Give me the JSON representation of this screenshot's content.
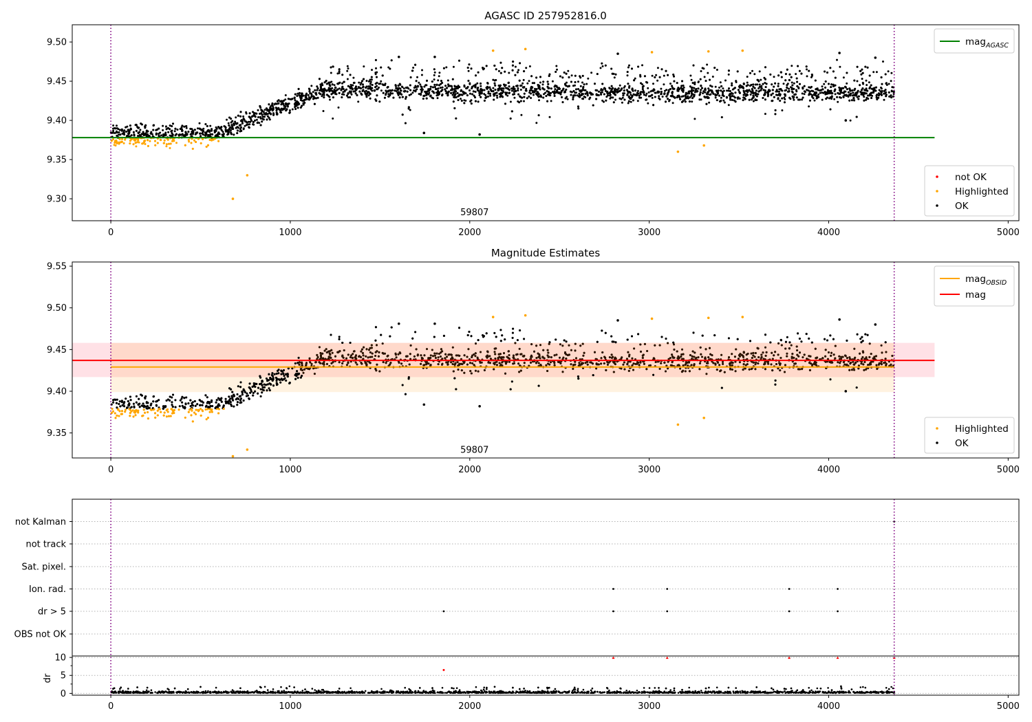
{
  "chart_data": [
    {
      "type": "scatter",
      "title": "AGASC ID 257952816.0",
      "xlim": [
        -215,
        5060
      ],
      "ylim": [
        9.272,
        9.522
      ],
      "xticks": [
        0,
        1000,
        2000,
        3000,
        4000,
        5000
      ],
      "yticks": [
        9.3,
        9.35,
        9.4,
        9.45,
        9.5
      ],
      "ytick_labels": [
        "9.30",
        "9.35",
        "9.40",
        "9.45",
        "9.50"
      ],
      "vlines": [
        0,
        4365
      ],
      "hlines": [
        {
          "name": "mag_AGASC",
          "y": 9.378,
          "x": [
            -215,
            4590
          ],
          "color": "#008000"
        }
      ],
      "annotations": [
        {
          "text": "59807",
          "x": 2180,
          "y": 9.279
        }
      ],
      "legend_top": {
        "position": "top-right",
        "entries": [
          {
            "label": "mag",
            "sub": "AGASC",
            "color": "#008000",
            "kind": "line"
          }
        ]
      },
      "legend_bottom": {
        "position": "bottom-right",
        "entries": [
          {
            "label": "not OK",
            "color": "#ff0000",
            "kind": "dot"
          },
          {
            "label": "Highlighted",
            "color": "#ffa500",
            "kind": "dot"
          },
          {
            "label": "OK",
            "color": "#000000",
            "kind": "dot"
          }
        ]
      },
      "series": [
        {
          "name": "Highlighted",
          "color": "#ffa500",
          "points": [
            [
              2130,
              9.489
            ],
            [
              2310,
              9.491
            ],
            [
              3015,
              9.487
            ],
            [
              3330,
              9.488
            ],
            [
              3520,
              9.489
            ],
            [
              680,
              9.3
            ],
            [
              760,
              9.33
            ],
            [
              3160,
              9.36
            ],
            [
              3305,
              9.368
            ]
          ]
        },
        {
          "name": "OK",
          "color": "#000000",
          "points": [
            [
              1745,
              9.384
            ],
            [
              2055,
              9.382
            ],
            [
              4060,
              9.486
            ],
            [
              4260,
              9.48
            ],
            [
              1605,
              9.481
            ],
            [
              1805,
              9.481
            ],
            [
              2825,
              9.485
            ],
            [
              4095,
              9.4
            ]
          ]
        }
      ]
    },
    {
      "type": "scatter",
      "title": "Magnitude Estimates",
      "xlim": [
        -215,
        5060
      ],
      "ylim": [
        9.32,
        9.555
      ],
      "xticks": [
        0,
        1000,
        2000,
        3000,
        4000,
        5000
      ],
      "yticks": [
        9.35,
        9.4,
        9.45,
        9.5,
        9.55
      ],
      "ytick_labels": [
        "9.35",
        "9.40",
        "9.45",
        "9.50",
        "9.55"
      ],
      "vlines": [
        0,
        4365
      ],
      "hlines": [
        {
          "name": "mag_OBSID",
          "y": 9.429,
          "x": [
            0,
            4365
          ],
          "color": "#ffa500"
        },
        {
          "name": "mag",
          "y": 9.437,
          "x": [
            -215,
            4590
          ],
          "color": "#ff0000"
        }
      ],
      "bands": [
        {
          "name": "mag band",
          "y": [
            9.417,
            9.458
          ],
          "x": [
            -215,
            4590
          ],
          "color": "#ff4d6a"
        },
        {
          "name": "mag_OBSID band",
          "y": [
            9.399,
            9.458
          ],
          "x": [
            0,
            4365
          ],
          "color": "#ffb347"
        }
      ],
      "annotations": [
        {
          "text": "59807",
          "x": 2180,
          "y": 9.326
        }
      ],
      "legend_top": {
        "position": "top-right",
        "entries": [
          {
            "label": "mag",
            "sub": "OBSID",
            "color": "#ffa500",
            "kind": "line"
          },
          {
            "label": "mag",
            "sub": "",
            "color": "#ff0000",
            "kind": "line"
          }
        ]
      },
      "legend_bottom": {
        "position": "bottom-right",
        "entries": [
          {
            "label": "Highlighted",
            "color": "#ffa500",
            "kind": "dot"
          },
          {
            "label": "OK",
            "color": "#000000",
            "kind": "dot"
          }
        ]
      },
      "series": [
        {
          "name": "Highlighted",
          "color": "#ffa500",
          "points": [
            [
              2130,
              9.489
            ],
            [
              2310,
              9.491
            ],
            [
              3015,
              9.487
            ],
            [
              3330,
              9.488
            ],
            [
              3520,
              9.489
            ],
            [
              680,
              9.322
            ],
            [
              760,
              9.33
            ],
            [
              3160,
              9.36
            ],
            [
              3305,
              9.368
            ]
          ]
        },
        {
          "name": "OK",
          "color": "#000000",
          "points": [
            [
              1745,
              9.384
            ],
            [
              2055,
              9.382
            ],
            [
              4060,
              9.486
            ],
            [
              4260,
              9.48
            ],
            [
              1605,
              9.481
            ],
            [
              1805,
              9.481
            ],
            [
              2825,
              9.485
            ],
            [
              4095,
              9.4
            ]
          ]
        }
      ]
    },
    {
      "type": "scatter",
      "title": "",
      "xlim": [
        -215,
        5060
      ],
      "xticks": [
        0,
        1000,
        2000,
        3000,
        4000,
        5000
      ],
      "vlines": [
        0,
        4365
      ],
      "flag_rows": [
        "not Kalman",
        "not track",
        "Sat. pixel.",
        "Ion. rad.",
        "dr > 5",
        "OBS not OK"
      ],
      "flag_points": [
        {
          "row": "Ion. rad.",
          "x": [
            2800,
            3100,
            3780,
            4050
          ]
        },
        {
          "row": "dr > 5",
          "x": [
            1855,
            2800,
            3100,
            3780,
            4050
          ]
        },
        {
          "row": "not Kalman",
          "x": [
            4365
          ]
        }
      ],
      "dr_panel": {
        "ylabel": "dr",
        "ylim": [
          -0.5,
          10.4
        ],
        "yticks": [
          0,
          5,
          10
        ],
        "ytick_labels": [
          "0",
          "5",
          "10"
        ],
        "outliers": [
          {
            "x": 1855,
            "y": 6.5,
            "color": "#ff0000"
          }
        ],
        "capped": [
          {
            "x": 2800,
            "y": 9.9
          },
          {
            "x": 3100,
            "y": 9.9
          },
          {
            "x": 3780,
            "y": 9.9
          },
          {
            "x": 4050,
            "y": 9.9
          },
          {
            "x": 4365,
            "y": 9.9
          }
        ]
      }
    }
  ]
}
